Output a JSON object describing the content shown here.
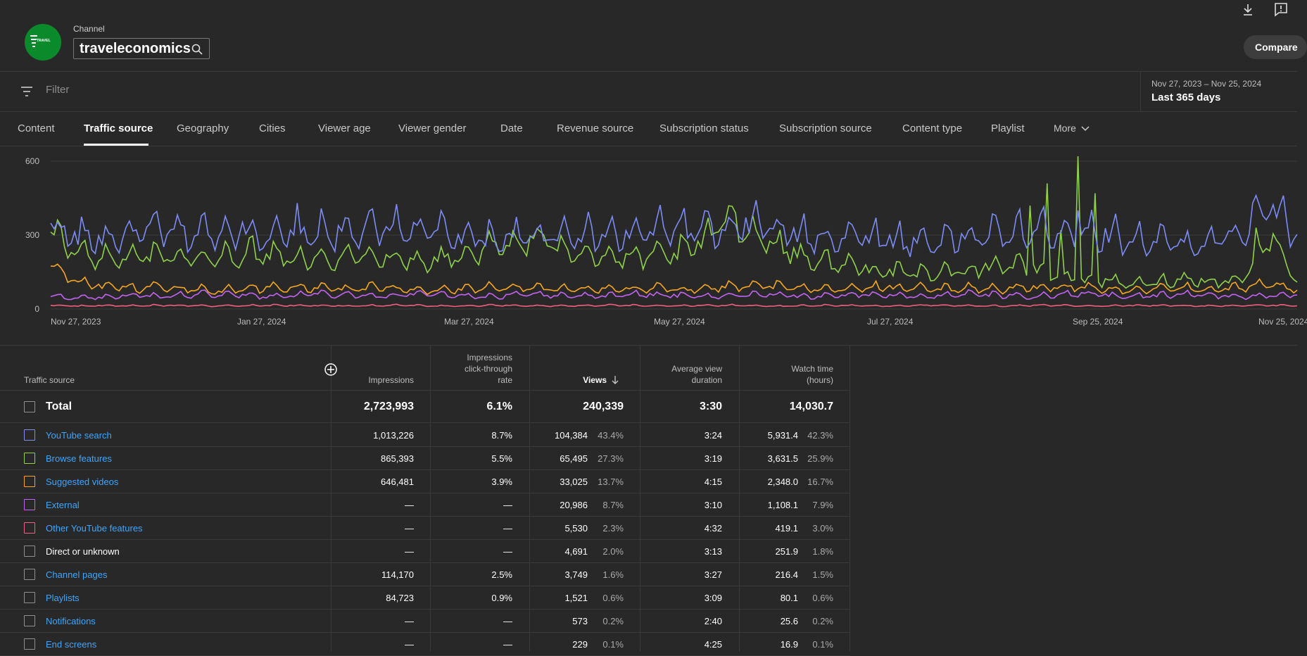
{
  "header": {
    "channel_label": "Channel",
    "channel_name": "traveleconomics",
    "avatar_text": "TRAVEL",
    "compare_label": "Compare"
  },
  "filter": {
    "placeholder": "Filter",
    "date_range": "Nov 27, 2023 – Nov 25, 2024",
    "date_label": "Last 365 days"
  },
  "tabs": [
    {
      "label": "Content",
      "active": false
    },
    {
      "label": "Traffic source",
      "active": true
    },
    {
      "label": "Geography",
      "active": false
    },
    {
      "label": "Cities",
      "active": false
    },
    {
      "label": "Viewer age",
      "active": false
    },
    {
      "label": "Viewer gender",
      "active": false
    },
    {
      "label": "Date",
      "active": false
    },
    {
      "label": "Revenue source",
      "active": false
    },
    {
      "label": "Subscription status",
      "active": false
    },
    {
      "label": "Subscription source",
      "active": false
    },
    {
      "label": "Content type",
      "active": false
    },
    {
      "label": "Playlist",
      "active": false
    },
    {
      "label": "More",
      "active": false
    }
  ],
  "chart_data": {
    "type": "line",
    "x_ticks": [
      "Nov 27, 2023",
      "Jan 27, 2024",
      "Mar 27, 2024",
      "May 27, 2024",
      "Jul 27, 2024",
      "Sep 25, 2024",
      "Nov 25, 2024"
    ],
    "y_ticks": [
      "0",
      "300",
      "600"
    ],
    "ylim": [
      0,
      600
    ],
    "grid": true,
    "series": [
      {
        "name": "YouTube search",
        "color": "#7c8cf5",
        "approx_values": [
          330,
          290,
          280,
          300,
          320,
          300,
          310,
          320,
          300,
          290,
          310,
          300,
          320,
          330,
          310,
          300,
          290,
          280,
          300,
          310,
          300,
          290,
          310,
          330,
          320,
          300,
          350,
          310,
          290,
          290,
          300,
          280,
          270,
          280,
          290,
          300,
          310,
          320,
          310,
          300,
          280,
          270,
          260,
          280,
          300,
          430,
          280
        ]
      },
      {
        "name": "Browse features",
        "color": "#8ed14a",
        "approx_values": [
          300,
          230,
          200,
          210,
          220,
          210,
          200,
          220,
          230,
          210,
          200,
          210,
          220,
          200,
          190,
          210,
          240,
          260,
          280,
          250,
          220,
          200,
          210,
          220,
          260,
          380,
          300,
          250,
          200,
          180,
          170,
          150,
          140,
          150,
          160,
          180,
          170,
          140,
          120,
          110,
          100,
          110,
          120,
          110,
          120,
          300,
          120
        ]
      },
      {
        "name": "Suggested videos",
        "color": "#f5a623",
        "approx_values": [
          170,
          110,
          90,
          80,
          85,
          80,
          75,
          80,
          85,
          90,
          85,
          80,
          85,
          80,
          75,
          80,
          85,
          90,
          85,
          80,
          75,
          80,
          85,
          80,
          85,
          90,
          100,
          90,
          85,
          80,
          85,
          90,
          85,
          80,
          85,
          80,
          85,
          90,
          85,
          80,
          75,
          80,
          85,
          80,
          85,
          100,
          80
        ]
      },
      {
        "name": "External",
        "color": "#c463f2",
        "approx_values": [
          50,
          45,
          50,
          55,
          50,
          55,
          60,
          55,
          50,
          55,
          60,
          55,
          50,
          55,
          60,
          55,
          50,
          55,
          60,
          55,
          50,
          55,
          60,
          55,
          50,
          55,
          60,
          55,
          50,
          55,
          60,
          55,
          50,
          55,
          60,
          55,
          50,
          55,
          60,
          55,
          50,
          55,
          60,
          55,
          50,
          55,
          60
        ]
      },
      {
        "name": "Other YouTube features",
        "color": "#f25f7e",
        "approx_values": [
          15,
          12,
          14,
          13,
          15,
          14,
          12,
          13,
          15,
          14,
          13,
          12,
          14,
          15,
          13,
          12,
          14,
          15,
          13,
          12,
          14,
          15,
          13,
          12,
          14,
          15,
          13,
          12,
          14,
          15,
          13,
          12,
          14,
          15,
          13,
          12,
          14,
          15,
          13,
          12,
          14,
          15,
          13,
          12,
          14,
          15,
          13
        ]
      }
    ]
  },
  "table": {
    "headers": {
      "source": "Traffic source",
      "impressions": "Impressions",
      "ctr_1": "Impressions",
      "ctr_2": "click-through",
      "ctr_3": "rate",
      "views": "Views",
      "avd_1": "Average view",
      "avd_2": "duration",
      "wt_1": "Watch time",
      "wt_2": "(hours)"
    },
    "total": {
      "label": "Total",
      "impressions": "2,723,993",
      "ctr": "6.1%",
      "views": "240,339",
      "avd": "3:30",
      "watch": "14,030.7"
    },
    "rows": [
      {
        "source": "YouTube search",
        "color": "#7c8cf5",
        "link": true,
        "impressions": "1,013,226",
        "ctr": "8.7%",
        "views": "104,384",
        "views_pct": "43.4%",
        "avd": "3:24",
        "watch": "5,931.4",
        "watch_pct": "42.3%"
      },
      {
        "source": "Browse features",
        "color": "#8ed14a",
        "link": true,
        "impressions": "865,393",
        "ctr": "5.5%",
        "views": "65,495",
        "views_pct": "27.3%",
        "avd": "3:19",
        "watch": "3,631.5",
        "watch_pct": "25.9%"
      },
      {
        "source": "Suggested videos",
        "color": "#f5a623",
        "link": true,
        "impressions": "646,481",
        "ctr": "3.9%",
        "views": "33,025",
        "views_pct": "13.7%",
        "avd": "4:15",
        "watch": "2,348.0",
        "watch_pct": "16.7%"
      },
      {
        "source": "External",
        "color": "#c463f2",
        "link": true,
        "impressions": "—",
        "ctr": "—",
        "views": "20,986",
        "views_pct": "8.7%",
        "avd": "3:10",
        "watch": "1,108.1",
        "watch_pct": "7.9%"
      },
      {
        "source": "Other YouTube features",
        "color": "#f25f7e",
        "link": true,
        "impressions": "—",
        "ctr": "—",
        "views": "5,530",
        "views_pct": "2.3%",
        "avd": "4:32",
        "watch": "419.1",
        "watch_pct": "3.0%"
      },
      {
        "source": "Direct or unknown",
        "color": "#909090",
        "link": false,
        "impressions": "—",
        "ctr": "—",
        "views": "4,691",
        "views_pct": "2.0%",
        "avd": "3:13",
        "watch": "251.9",
        "watch_pct": "1.8%"
      },
      {
        "source": "Channel pages",
        "color": "#909090",
        "link": true,
        "impressions": "114,170",
        "ctr": "2.5%",
        "views": "3,749",
        "views_pct": "1.6%",
        "avd": "3:27",
        "watch": "216.4",
        "watch_pct": "1.5%"
      },
      {
        "source": "Playlists",
        "color": "#909090",
        "link": true,
        "impressions": "84,723",
        "ctr": "0.9%",
        "views": "1,521",
        "views_pct": "0.6%",
        "avd": "3:09",
        "watch": "80.1",
        "watch_pct": "0.6%"
      },
      {
        "source": "Notifications",
        "color": "#909090",
        "link": true,
        "impressions": "—",
        "ctr": "—",
        "views": "573",
        "views_pct": "0.2%",
        "avd": "2:40",
        "watch": "25.6",
        "watch_pct": "0.2%"
      },
      {
        "source": "End screens",
        "color": "#909090",
        "link": true,
        "impressions": "—",
        "ctr": "—",
        "views": "229",
        "views_pct": "0.1%",
        "avd": "4:25",
        "watch": "16.9",
        "watch_pct": "0.1%"
      }
    ]
  }
}
